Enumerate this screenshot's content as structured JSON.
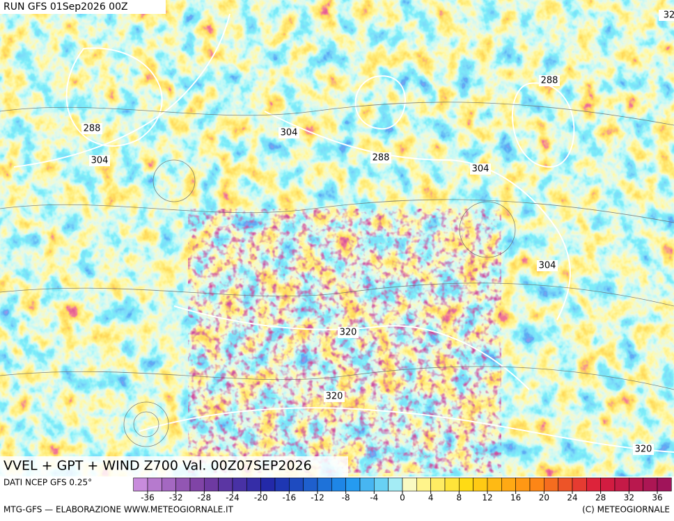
{
  "header": {
    "run": "RUN GFS 01Sep2026 00Z"
  },
  "map": {
    "title": "VVEL + GPT + WIND Z700 Val. 00Z07SEP2026",
    "contour_labels": [
      288,
      304,
      304,
      288,
      288,
      304,
      304,
      320,
      320,
      320,
      32
    ]
  },
  "footer": {
    "source": "DATI NCEP GFS 0.25°",
    "credit": "MTG-GFS — ELABORAZIONE WWW.METEOGIORNALE.IT",
    "copyright": "(C) METEOGIORNALE"
  },
  "colorbar": {
    "ticks": [
      -36,
      -32,
      -28,
      -24,
      -20,
      -16,
      -12,
      -8,
      -4,
      0,
      4,
      8,
      12,
      16,
      20,
      24,
      28,
      32,
      36
    ]
  }
}
